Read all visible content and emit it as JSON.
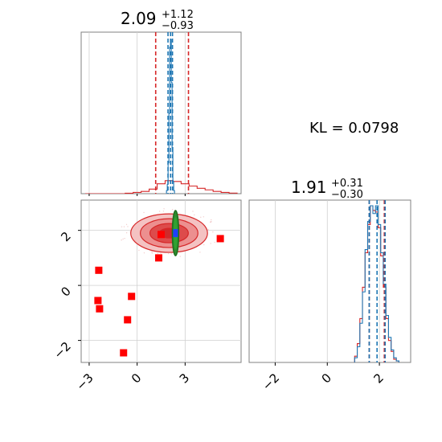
{
  "chart_data": [
    {
      "type": "histogram",
      "panel": "marginal-x",
      "title": {
        "median": "2.09",
        "plus": "+1.12",
        "minus": "−0.93"
      },
      "xlim": [
        -3.5,
        6.5
      ],
      "grid": true,
      "series": [
        {
          "name": "",
          "color": "#1f77b4",
          "style": "step",
          "bin_centers": [
            1.86,
            1.91,
            1.96,
            2.01,
            2.06,
            2.11,
            2.16,
            2.21,
            2.26,
            2.31
          ],
          "counts": [
            0.02,
            0.06,
            0.2,
            0.52,
            0.95,
            1.0,
            0.72,
            0.3,
            0.08,
            0.02
          ],
          "quantile_lines": [
            1.93,
            2.09,
            2.21
          ]
        },
        {
          "name": "",
          "color": "#d62728",
          "style": "step",
          "bin_centers": [
            -3.0,
            -2.5,
            -2.0,
            -1.5,
            -1.0,
            -0.5,
            0.0,
            0.5,
            1.0,
            1.5,
            2.0,
            2.5,
            3.0,
            3.5,
            4.0,
            4.5,
            5.0,
            5.5,
            6.0
          ],
          "counts": [
            0.0,
            0.0,
            0.0,
            0.0,
            0.0,
            0.003,
            0.008,
            0.015,
            0.03,
            0.065,
            0.085,
            0.08,
            0.065,
            0.05,
            0.035,
            0.025,
            0.015,
            0.008,
            0.004
          ],
          "quantile_lines": [
            1.16,
            3.21
          ]
        }
      ]
    },
    {
      "type": "contour",
      "panel": "joint",
      "xlim": [
        -3.5,
        6.5
      ],
      "ylim": [
        -2.8,
        3.1
      ],
      "xticks": [
        "−3",
        "0",
        "3"
      ],
      "yticks": [
        "−2",
        "0",
        "2"
      ],
      "grid": true,
      "red_density": {
        "center": [
          2.0,
          1.9
        ],
        "sigma": [
          1.2,
          0.35
        ],
        "color": "#d62728"
      },
      "green_ellipse": {
        "center": [
          2.4,
          1.9
        ],
        "sigma": [
          0.1,
          0.82
        ],
        "color": "#2ca02c"
      },
      "blue_core": {
        "center": [
          2.4,
          1.9
        ],
        "color": "#1f3fff"
      },
      "square_markers": {
        "color": "#ff0000",
        "points": [
          [
            -2.4,
            0.55
          ],
          [
            -2.45,
            -0.55
          ],
          [
            -2.35,
            -0.85
          ],
          [
            -0.35,
            -0.4
          ],
          [
            -0.6,
            -1.25
          ],
          [
            -0.85,
            -2.45
          ],
          [
            1.35,
            1.0
          ],
          [
            1.5,
            1.85
          ],
          [
            5.2,
            1.7
          ]
        ]
      }
    },
    {
      "type": "histogram",
      "panel": "marginal-y",
      "title": {
        "median": "1.91",
        "plus": "+0.31",
        "minus": "−0.30"
      },
      "xlim": [
        -3.0,
        3.2
      ],
      "xticks": [
        "−2",
        "0",
        "2"
      ],
      "grid": true,
      "series": [
        {
          "name": "",
          "color": "#1f77b4",
          "style": "step",
          "bin_centers": [
            1.1,
            1.2,
            1.3,
            1.4,
            1.5,
            1.6,
            1.7,
            1.8,
            1.9,
            2.0,
            2.1,
            2.2,
            2.3,
            2.4,
            2.5,
            2.6,
            2.7
          ],
          "counts": [
            0.03,
            0.1,
            0.25,
            0.45,
            0.72,
            0.9,
            1.0,
            0.95,
            1.0,
            0.88,
            0.7,
            0.5,
            0.3,
            0.16,
            0.08,
            0.03,
            0.01
          ],
          "quantile_lines": [
            1.61,
            1.91,
            2.22
          ]
        },
        {
          "name": "",
          "color": "#d62728",
          "style": "step",
          "bin_centers": [
            1.1,
            1.2,
            1.3,
            1.4,
            1.5,
            1.6,
            1.7,
            1.8,
            1.9,
            2.0,
            2.1,
            2.2,
            2.3,
            2.4,
            2.5,
            2.6,
            2.7
          ],
          "counts": [
            0.04,
            0.12,
            0.28,
            0.48,
            0.7,
            0.88,
            1.0,
            0.97,
            0.96,
            0.86,
            0.68,
            0.48,
            0.28,
            0.14,
            0.07,
            0.02,
            0.01
          ],
          "quantile_lines": [
            1.61,
            2.19
          ]
        }
      ]
    }
  ],
  "annotation": {
    "kl_text": "KL = 0.0798"
  }
}
